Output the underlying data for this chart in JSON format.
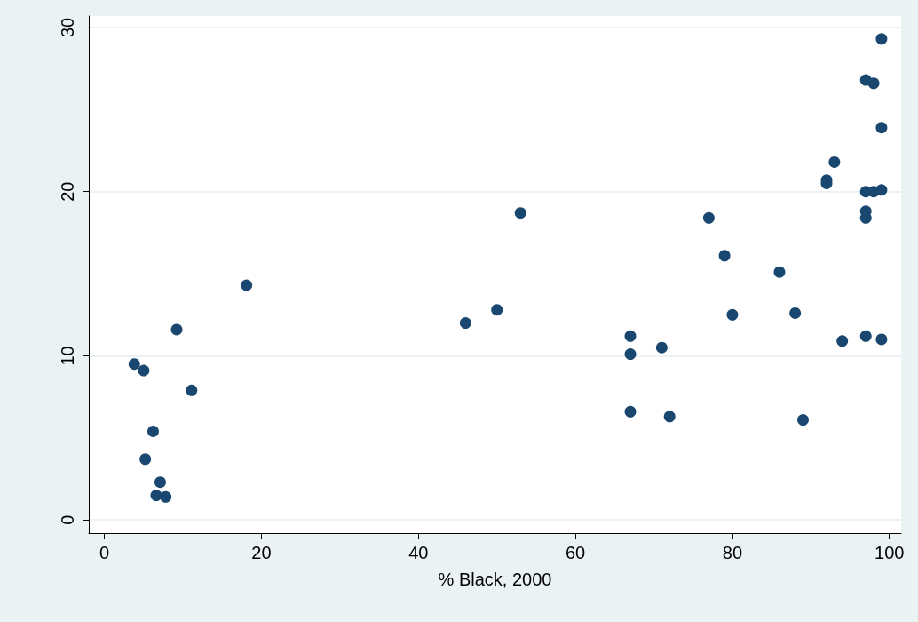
{
  "chart_data": {
    "type": "scatter",
    "xlabel": "% Black, 2000",
    "color": "#1a476f",
    "marker": "circle",
    "grid": "y",
    "x": [
      3.8,
      5,
      5.2,
      6.2,
      6.6,
      7.1,
      7.8,
      9.2,
      11.1,
      18.1,
      46,
      50,
      53,
      67,
      67,
      67,
      71,
      72,
      77,
      79,
      80,
      86,
      88,
      89,
      92,
      92,
      93,
      94,
      97,
      98,
      99,
      99,
      97,
      98,
      99,
      97,
      97,
      97,
      99
    ],
    "values": [
      9.5,
      9.1,
      3.7,
      5.4,
      1.5,
      2.3,
      1.4,
      11.6,
      7.9,
      14.3,
      12,
      12.8,
      18.7,
      11.2,
      10.1,
      6.6,
      10.5,
      6.3,
      18.4,
      16.1,
      12.5,
      15.1,
      12.6,
      6.1,
      20.7,
      20.5,
      21.8,
      10.9,
      26.8,
      26.6,
      29.3,
      23.9,
      20,
      20,
      20.1,
      18.8,
      18.4,
      11.2,
      11
    ],
    "xlim": [
      -2,
      101.5
    ],
    "xticks": [
      0,
      20,
      40,
      60,
      80,
      100
    ],
    "ylim": [
      -0.8,
      30.7
    ],
    "yticks": [
      0,
      10,
      20,
      30
    ]
  }
}
